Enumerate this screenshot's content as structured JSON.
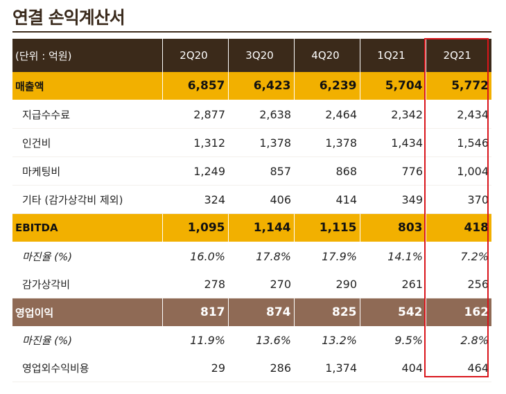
{
  "title": "연결 손익계산서",
  "header": {
    "unit_label": "(단위 : 억원)",
    "periods": [
      "2Q20",
      "3Q20",
      "4Q20",
      "1Q21",
      "2Q21"
    ]
  },
  "rows": [
    {
      "label": "매출액",
      "values": [
        "6,857",
        "6,423",
        "6,239",
        "5,704",
        "5,772"
      ]
    },
    {
      "label": "지급수수료",
      "values": [
        "2,877",
        "2,638",
        "2,464",
        "2,342",
        "2,434"
      ]
    },
    {
      "label": "인건비",
      "values": [
        "1,312",
        "1,378",
        "1,378",
        "1,434",
        "1,546"
      ]
    },
    {
      "label": "마케팅비",
      "values": [
        "1,249",
        "857",
        "868",
        "776",
        "1,004"
      ]
    },
    {
      "label": "기타 (감가상각비 제외)",
      "values": [
        "324",
        "406",
        "414",
        "349",
        "370"
      ]
    },
    {
      "label": "EBITDA",
      "values": [
        "1,095",
        "1,144",
        "1,115",
        "803",
        "418"
      ]
    },
    {
      "label": "마진율 (%)",
      "values": [
        "16.0%",
        "17.8%",
        "17.9%",
        "14.1%",
        "7.2%"
      ]
    },
    {
      "label": "감가상각비",
      "values": [
        "278",
        "270",
        "290",
        "261",
        "256"
      ]
    },
    {
      "label": "영업이익",
      "values": [
        "817",
        "874",
        "825",
        "542",
        "162"
      ]
    },
    {
      "label": "마진율 (%)",
      "values": [
        "11.9%",
        "13.6%",
        "13.2%",
        "9.5%",
        "2.8%"
      ]
    },
    {
      "label": "영업외수익비용",
      "values": [
        "29",
        "286",
        "1,374",
        "404",
        "464"
      ]
    }
  ],
  "colors": {
    "header_bg": "#3b2a1a",
    "highlight_bg": "#f2b000",
    "operating_bg": "#8f6a55",
    "focus_outline": "#d9141a"
  }
}
